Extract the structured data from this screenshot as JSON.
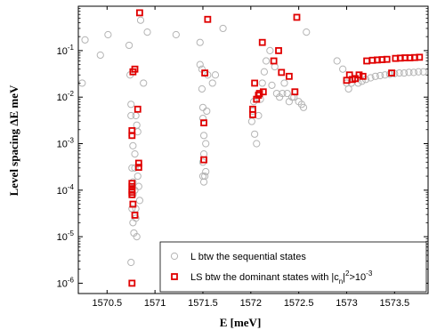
{
  "chart_data": {
    "type": "scatter",
    "xlabel": "E [meV]",
    "ylabel": "Level spacing ΔE meV",
    "xlim": [
      1570.2,
      1573.85
    ],
    "ylim": [
      6e-07,
      0.9
    ],
    "yscale": "log",
    "x_ticks": [
      1570.5,
      1571,
      1571.5,
      1572,
      1572.5,
      1573,
      1573.5
    ],
    "x_tick_labels": [
      "1570.5",
      "1571",
      "1571.5",
      "1572",
      "1572.5",
      "1573",
      "1573.5"
    ],
    "y_ticks": [
      1e-06,
      1e-05,
      0.0001,
      0.001,
      0.01,
      0.1
    ],
    "y_tick_labels": [
      {
        "base": "10",
        "exp": "-6"
      },
      {
        "base": "10",
        "exp": "-5"
      },
      {
        "base": "10",
        "exp": "-4"
      },
      {
        "base": "10",
        "exp": "-3"
      },
      {
        "base": "10",
        "exp": "-2"
      },
      {
        "base": "10",
        "exp": "-1"
      }
    ],
    "grid": false,
    "legend_position": "bottom-right",
    "series": [
      {
        "name": "L btw the sequential states",
        "marker": "circle",
        "color": "#b4b4b4",
        "points": [
          [
            1570.24,
            0.02
          ],
          [
            1570.27,
            0.17
          ],
          [
            1570.43,
            0.08
          ],
          [
            1570.51,
            0.22
          ],
          [
            1570.73,
            0.13
          ],
          [
            1570.74,
            0.03
          ],
          [
            1570.75,
            0.007
          ],
          [
            1570.75,
            0.004
          ],
          [
            1570.76,
            0.0015
          ],
          [
            1570.77,
            0.0009
          ],
          [
            1570.76,
            0.0003
          ],
          [
            1570.77,
            0.00015
          ],
          [
            1570.77,
            8e-05
          ],
          [
            1570.76,
            4e-05
          ],
          [
            1570.77,
            2e-05
          ],
          [
            1570.78,
            1.2e-05
          ],
          [
            1570.79,
            0.0003
          ],
          [
            1570.79,
            0.0001
          ],
          [
            1570.8,
            4e-05
          ],
          [
            1570.8,
            2.5e-05
          ],
          [
            1570.81,
            1e-05
          ],
          [
            1570.79,
            0.0006
          ],
          [
            1570.8,
            0.004
          ],
          [
            1570.81,
            0.0025
          ],
          [
            1570.82,
            0.0018
          ],
          [
            1570.82,
            0.0002
          ],
          [
            1570.83,
            0.00012
          ],
          [
            1570.84,
            6e-05
          ],
          [
            1570.85,
            0.45
          ],
          [
            1570.88,
            0.02
          ],
          [
            1570.92,
            0.25
          ],
          [
            1570.75,
            2.8e-06
          ],
          [
            1571.22,
            0.22
          ],
          [
            1571.47,
            0.15
          ],
          [
            1571.47,
            0.05
          ],
          [
            1571.49,
            0.04
          ],
          [
            1571.49,
            0.015
          ],
          [
            1571.5,
            0.006
          ],
          [
            1571.5,
            0.0035
          ],
          [
            1571.51,
            0.0015
          ],
          [
            1571.51,
            0.0006
          ],
          [
            1571.5,
            0.0004
          ],
          [
            1571.5,
            0.0002
          ],
          [
            1571.51,
            0.00015
          ],
          [
            1571.52,
            0.0002
          ],
          [
            1571.53,
            0.00025
          ],
          [
            1571.53,
            0.001
          ],
          [
            1571.54,
            0.005
          ],
          [
            1571.55,
            0.03
          ],
          [
            1571.6,
            0.02
          ],
          [
            1571.63,
            0.03
          ],
          [
            1571.71,
            0.3
          ],
          [
            1572.01,
            0.003
          ],
          [
            1572.02,
            0.005
          ],
          [
            1572.03,
            0.008
          ],
          [
            1572.04,
            0.0016
          ],
          [
            1572.06,
            0.001
          ],
          [
            1572.08,
            0.004
          ],
          [
            1572.1,
            0.009
          ],
          [
            1572.12,
            0.02
          ],
          [
            1572.14,
            0.035
          ],
          [
            1572.16,
            0.06
          ],
          [
            1572.2,
            0.1
          ],
          [
            1572.22,
            0.018
          ],
          [
            1572.25,
            0.045
          ],
          [
            1572.27,
            0.012
          ],
          [
            1572.3,
            0.01
          ],
          [
            1572.33,
            0.012
          ],
          [
            1572.35,
            0.02
          ],
          [
            1572.38,
            0.012
          ],
          [
            1572.4,
            0.008
          ],
          [
            1572.43,
            0.01
          ],
          [
            1572.45,
            0.01
          ],
          [
            1572.5,
            0.008
          ],
          [
            1572.53,
            0.007
          ],
          [
            1572.55,
            0.006
          ],
          [
            1572.58,
            0.25
          ],
          [
            1572.9,
            0.06
          ],
          [
            1572.96,
            0.04
          ],
          [
            1573.0,
            0.02
          ],
          [
            1573.02,
            0.015
          ],
          [
            1573.05,
            0.02
          ],
          [
            1573.08,
            0.025
          ],
          [
            1573.12,
            0.02
          ],
          [
            1573.16,
            0.022
          ],
          [
            1573.2,
            0.024
          ],
          [
            1573.25,
            0.026
          ],
          [
            1573.3,
            0.028
          ],
          [
            1573.35,
            0.029
          ],
          [
            1573.4,
            0.03
          ],
          [
            1573.45,
            0.031
          ],
          [
            1573.5,
            0.032
          ],
          [
            1573.55,
            0.033
          ],
          [
            1573.6,
            0.033
          ],
          [
            1573.65,
            0.034
          ],
          [
            1573.7,
            0.034
          ],
          [
            1573.75,
            0.035
          ],
          [
            1573.8,
            0.035
          ]
        ]
      },
      {
        "name": "LS btw the dominant states with |c_n|^2>10^-3",
        "marker": "square",
        "color": "#e00000",
        "points": [
          [
            1570.84,
            0.65
          ],
          [
            1570.77,
            0.035
          ],
          [
            1570.79,
            0.04
          ],
          [
            1570.82,
            0.0055
          ],
          [
            1570.76,
            0.0019
          ],
          [
            1570.76,
            0.0015
          ],
          [
            1570.83,
            0.00038
          ],
          [
            1570.83,
            0.00031
          ],
          [
            1570.76,
            0.00014
          ],
          [
            1570.76,
            0.00012
          ],
          [
            1570.76,
            0.0001
          ],
          [
            1570.76,
            9e-05
          ],
          [
            1570.76,
            8e-05
          ],
          [
            1570.77,
            5e-05
          ],
          [
            1570.79,
            2.9e-05
          ],
          [
            1570.76,
            1e-06
          ],
          [
            1571.55,
            0.47
          ],
          [
            1571.52,
            0.033
          ],
          [
            1571.51,
            0.0028
          ],
          [
            1571.51,
            0.00045
          ],
          [
            1572.12,
            0.15
          ],
          [
            1572.04,
            0.02
          ],
          [
            1572.02,
            0.0055
          ],
          [
            1572.02,
            0.0042
          ],
          [
            1572.06,
            0.009
          ],
          [
            1572.08,
            0.011
          ],
          [
            1572.09,
            0.012
          ],
          [
            1572.13,
            0.013
          ],
          [
            1572.24,
            0.06
          ],
          [
            1572.29,
            0.1
          ],
          [
            1572.32,
            0.034
          ],
          [
            1572.4,
            0.028
          ],
          [
            1572.46,
            0.013
          ],
          [
            1572.48,
            0.52
          ],
          [
            1573.0,
            0.023
          ],
          [
            1573.03,
            0.03
          ],
          [
            1573.06,
            0.024
          ],
          [
            1573.09,
            0.025
          ],
          [
            1573.13,
            0.03
          ],
          [
            1573.17,
            0.028
          ],
          [
            1573.21,
            0.06
          ],
          [
            1573.27,
            0.062
          ],
          [
            1573.32,
            0.063
          ],
          [
            1573.37,
            0.064
          ],
          [
            1573.42,
            0.065
          ],
          [
            1573.47,
            0.033
          ],
          [
            1573.51,
            0.068
          ],
          [
            1573.56,
            0.069
          ],
          [
            1573.61,
            0.07
          ],
          [
            1573.66,
            0.07
          ],
          [
            1573.71,
            0.071
          ],
          [
            1573.76,
            0.072
          ]
        ]
      }
    ]
  }
}
